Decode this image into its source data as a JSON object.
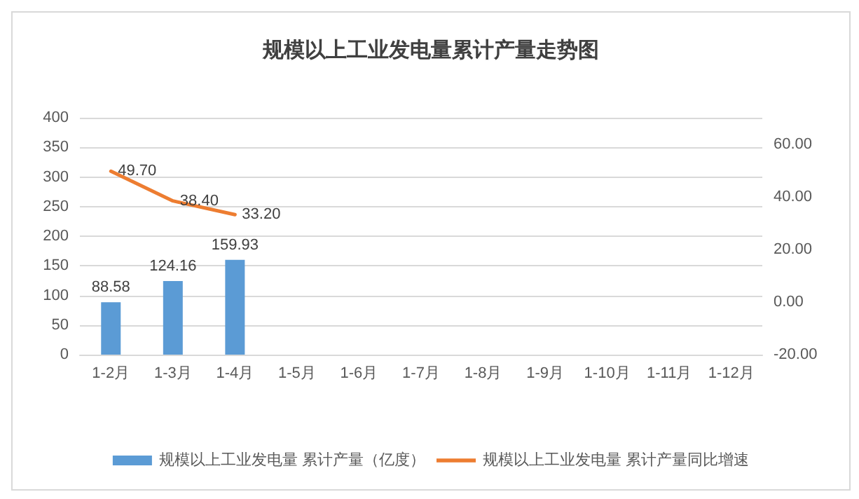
{
  "chart_data": {
    "type": "bar",
    "title": "规模以上工业发电量累计产量走势图",
    "categories": [
      "1-2月",
      "1-3月",
      "1-4月",
      "1-5月",
      "1-6月",
      "1-7月",
      "1-8月",
      "1-9月",
      "1-10月",
      "1-11月",
      "1-12月"
    ],
    "series": [
      {
        "name": "规模以上工业发电量 累计产量（亿度）",
        "color": "#5b9bd5",
        "values": [
          88.58,
          124.16,
          159.93,
          null,
          null,
          null,
          null,
          null,
          null,
          null,
          null
        ],
        "value_labels": [
          "88.58",
          "124.16",
          "159.93",
          null,
          null,
          null,
          null,
          null,
          null,
          null,
          null
        ]
      },
      {
        "name": "规模以上工业发电量 累计产量同比增速",
        "type": "line",
        "axis": "y2",
        "color": "#ed7d31",
        "values": [
          49.7,
          38.4,
          33.2,
          null,
          null,
          null,
          null,
          null,
          null,
          null,
          null
        ],
        "value_labels": [
          "49.70",
          "38.40",
          "33.20",
          null,
          null,
          null,
          null,
          null,
          null,
          null,
          null
        ]
      }
    ],
    "ylim": [
      0,
      400
    ],
    "yticks": [
      0,
      50,
      100,
      150,
      200,
      250,
      300,
      350,
      400
    ],
    "y2lim": [
      -20,
      70
    ],
    "y2ticks": [
      {
        "value": -20,
        "label": "-20.00"
      },
      {
        "value": 0,
        "label": "0.00"
      },
      {
        "value": 20,
        "label": "20.00"
      },
      {
        "value": 40,
        "label": "40.00"
      },
      {
        "value": 60,
        "label": "60.00"
      }
    ],
    "grid": "y",
    "legend": "bottom",
    "marker": "none"
  }
}
